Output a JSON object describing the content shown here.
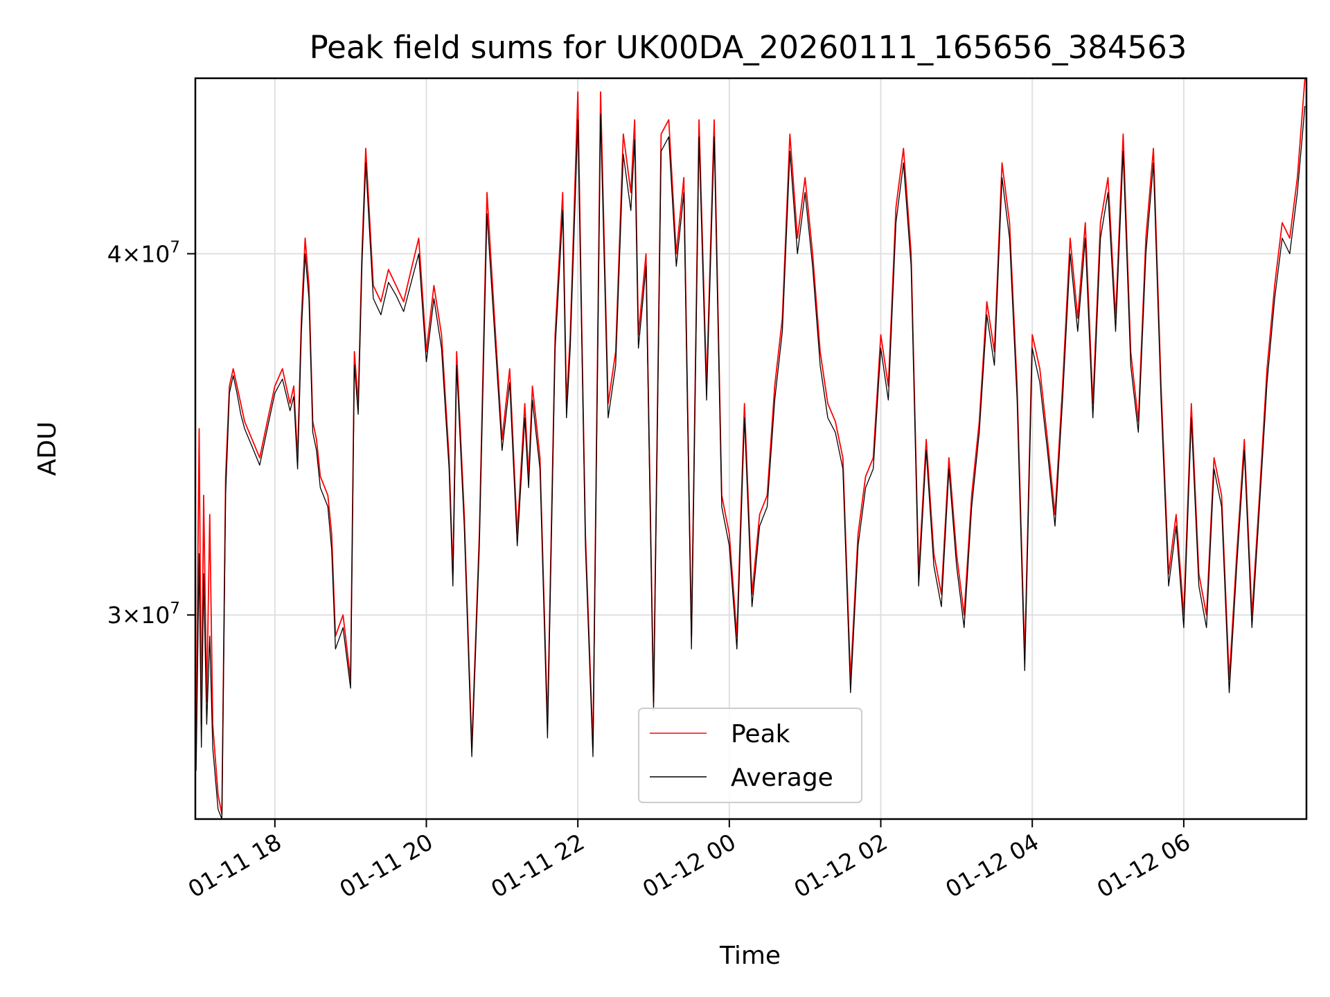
{
  "chart_data": {
    "type": "line",
    "title": "Peak field sums for UK00DA_20260111_165656_384563",
    "xlabel": "Time",
    "ylabel": "ADU",
    "yscale": "log",
    "xlim_hours": [
      16.95,
      31.62
    ],
    "ylim": [
      25500000,
      46000000
    ],
    "x_ticks": [
      {
        "hours": 18,
        "label": "01-11 18"
      },
      {
        "hours": 20,
        "label": "01-11 20"
      },
      {
        "hours": 22,
        "label": "01-11 22"
      },
      {
        "hours": 24,
        "label": "01-12 00"
      },
      {
        "hours": 26,
        "label": "01-12 02"
      },
      {
        "hours": 28,
        "label": "01-12 04"
      },
      {
        "hours": 30,
        "label": "01-12 06"
      }
    ],
    "y_ticks": [
      {
        "value": 30000000,
        "mantissa": "3",
        "exponent": "7"
      },
      {
        "value": 40000000,
        "mantissa": "4",
        "exponent": "7"
      }
    ],
    "grid": true,
    "legend_position": "lower-center",
    "series": [
      {
        "name": "Peak",
        "color": "#ff0000",
        "hours": [
          16.96,
          17.0,
          17.03,
          17.06,
          17.1,
          17.14,
          17.18,
          17.25,
          17.3,
          17.35,
          17.4,
          17.45,
          17.5,
          17.55,
          17.6,
          17.7,
          17.8,
          17.9,
          18.0,
          18.1,
          18.2,
          18.25,
          18.3,
          18.35,
          18.4,
          18.45,
          18.5,
          18.55,
          18.6,
          18.7,
          18.75,
          18.8,
          18.9,
          19.0,
          19.05,
          19.1,
          19.15,
          19.2,
          19.3,
          19.4,
          19.5,
          19.6,
          19.7,
          19.8,
          19.9,
          20.0,
          20.1,
          20.2,
          20.3,
          20.35,
          20.4,
          20.5,
          20.6,
          20.7,
          20.8,
          20.9,
          21.0,
          21.1,
          21.2,
          21.3,
          21.35,
          21.4,
          21.5,
          21.6,
          21.7,
          21.8,
          21.85,
          21.9,
          22.0,
          22.05,
          22.1,
          22.2,
          22.3,
          22.4,
          22.5,
          22.6,
          22.7,
          22.75,
          22.8,
          22.9,
          23.0,
          23.1,
          23.2,
          23.3,
          23.4,
          23.5,
          23.6,
          23.7,
          23.8,
          23.9,
          24.0,
          24.1,
          24.2,
          24.3,
          24.4,
          24.5,
          24.6,
          24.7,
          24.8,
          24.9,
          25.0,
          25.1,
          25.2,
          25.3,
          25.4,
          25.5,
          25.6,
          25.7,
          25.8,
          25.9,
          26.0,
          26.1,
          26.2,
          26.3,
          26.4,
          26.5,
          26.6,
          26.7,
          26.8,
          26.9,
          27.0,
          27.1,
          27.2,
          27.3,
          27.4,
          27.5,
          27.6,
          27.7,
          27.8,
          27.9,
          28.0,
          28.1,
          28.2,
          28.3,
          28.4,
          28.5,
          28.6,
          28.7,
          28.8,
          28.9,
          29.0,
          29.1,
          29.2,
          29.3,
          29.4,
          29.5,
          29.6,
          29.7,
          29.8,
          29.9,
          30.0,
          30.1,
          30.2,
          30.3,
          30.4,
          30.5,
          30.6,
          30.7,
          30.8,
          30.9,
          31.0,
          31.1,
          31.2,
          31.3,
          31.4,
          31.5,
          31.6
        ],
        "values": [
          27000000,
          34800000,
          27500000,
          33000000,
          28000000,
          32500000,
          27500000,
          26000000,
          25600000,
          33500000,
          36000000,
          36500000,
          36000000,
          35500000,
          35000000,
          34500000,
          34000000,
          35000000,
          36000000,
          36500000,
          35500000,
          36000000,
          34000000,
          38000000,
          40500000,
          39000000,
          35000000,
          34500000,
          33500000,
          33000000,
          32000000,
          29500000,
          30000000,
          28500000,
          37000000,
          35500000,
          40000000,
          43500000,
          39000000,
          38500000,
          39500000,
          39000000,
          38500000,
          39500000,
          40500000,
          37000000,
          39000000,
          37500000,
          34000000,
          31000000,
          37000000,
          32500000,
          27000000,
          32000000,
          42000000,
          38000000,
          34500000,
          36500000,
          32000000,
          35500000,
          33500000,
          36000000,
          34000000,
          27500000,
          37500000,
          42000000,
          35500000,
          37500000,
          45500000,
          38000000,
          32000000,
          27000000,
          45500000,
          35500000,
          37000000,
          44000000,
          42000000,
          44500000,
          37500000,
          40000000,
          28000000,
          44000000,
          44500000,
          40000000,
          42500000,
          29500000,
          44500000,
          36000000,
          44500000,
          33000000,
          32000000,
          29500000,
          35500000,
          30500000,
          32500000,
          33000000,
          36000000,
          38000000,
          44000000,
          40500000,
          42500000,
          40000000,
          37000000,
          35500000,
          35000000,
          34000000,
          28500000,
          32000000,
          33500000,
          34000000,
          37500000,
          36000000,
          41500000,
          43500000,
          40000000,
          31000000,
          34500000,
          31500000,
          30500000,
          34000000,
          31500000,
          30000000,
          33000000,
          35000000,
          38500000,
          37000000,
          43000000,
          41000000,
          36000000,
          29000000,
          37500000,
          36500000,
          34500000,
          32500000,
          36000000,
          40500000,
          38000000,
          41000000,
          35500000,
          41000000,
          42500000,
          38000000,
          44000000,
          37000000,
          35000000,
          40500000,
          43500000,
          36000000,
          31000000,
          32500000,
          30000000,
          35500000,
          31000000,
          30000000,
          34000000,
          33000000,
          28500000,
          31500000,
          34500000,
          30000000,
          33000000,
          36500000,
          39000000,
          41000000,
          40500000,
          42500000,
          46000000
        ]
      },
      {
        "name": "Average",
        "color": "#000000",
        "hours": [
          16.96,
          17.0,
          17.03,
          17.06,
          17.1,
          17.14,
          17.18,
          17.25,
          17.3,
          17.35,
          17.4,
          17.45,
          17.5,
          17.55,
          17.6,
          17.7,
          17.8,
          17.9,
          18.0,
          18.1,
          18.2,
          18.25,
          18.3,
          18.35,
          18.4,
          18.45,
          18.5,
          18.55,
          18.6,
          18.7,
          18.75,
          18.8,
          18.9,
          19.0,
          19.05,
          19.1,
          19.15,
          19.2,
          19.3,
          19.4,
          19.5,
          19.6,
          19.7,
          19.8,
          19.9,
          20.0,
          20.1,
          20.2,
          20.3,
          20.35,
          20.4,
          20.5,
          20.6,
          20.7,
          20.8,
          20.9,
          21.0,
          21.1,
          21.2,
          21.3,
          21.35,
          21.4,
          21.5,
          21.6,
          21.7,
          21.8,
          21.85,
          21.9,
          22.0,
          22.05,
          22.1,
          22.2,
          22.3,
          22.4,
          22.5,
          22.6,
          22.7,
          22.75,
          22.8,
          22.9,
          23.0,
          23.1,
          23.2,
          23.3,
          23.4,
          23.5,
          23.6,
          23.7,
          23.8,
          23.9,
          24.0,
          24.1,
          24.2,
          24.3,
          24.4,
          24.5,
          24.6,
          24.7,
          24.8,
          24.9,
          25.0,
          25.1,
          25.2,
          25.3,
          25.4,
          25.5,
          25.6,
          25.7,
          25.8,
          25.9,
          26.0,
          26.1,
          26.2,
          26.3,
          26.4,
          26.5,
          26.6,
          26.7,
          26.8,
          26.9,
          27.0,
          27.1,
          27.2,
          27.3,
          27.4,
          27.5,
          27.6,
          27.7,
          27.8,
          27.9,
          28.0,
          28.1,
          28.2,
          28.3,
          28.4,
          28.5,
          28.6,
          28.7,
          28.8,
          28.9,
          29.0,
          29.1,
          29.2,
          29.3,
          29.4,
          29.5,
          29.6,
          29.7,
          29.8,
          29.9,
          30.0,
          30.1,
          30.2,
          30.3,
          30.4,
          30.5,
          30.6,
          30.7,
          30.8,
          30.9,
          31.0,
          31.1,
          31.2,
          31.3,
          31.4,
          31.5,
          31.6
        ],
        "values": [
          26500000,
          31500000,
          27000000,
          31000000,
          27500000,
          29500000,
          27000000,
          25700000,
          25500000,
          33000000,
          35800000,
          36300000,
          35800000,
          35200000,
          34800000,
          34300000,
          33800000,
          34800000,
          35800000,
          36200000,
          35300000,
          35700000,
          33700000,
          37600000,
          40000000,
          38600000,
          34700000,
          34200000,
          33200000,
          32700000,
          31600000,
          29200000,
          29700000,
          28300000,
          36600000,
          35200000,
          39600000,
          43000000,
          38600000,
          38100000,
          39100000,
          38700000,
          38200000,
          39100000,
          40000000,
          36700000,
          38600000,
          37100000,
          33700000,
          30700000,
          36600000,
          32200000,
          26800000,
          31700000,
          41300000,
          37600000,
          34200000,
          36100000,
          31700000,
          35100000,
          33200000,
          35600000,
          33700000,
          27200000,
          37100000,
          41400000,
          35100000,
          37100000,
          44500000,
          37600000,
          31700000,
          26800000,
          44700000,
          35100000,
          36600000,
          43300000,
          41400000,
          43800000,
          37100000,
          39600000,
          27800000,
          43400000,
          43900000,
          39600000,
          42000000,
          29200000,
          43900000,
          35600000,
          43900000,
          32700000,
          31700000,
          29200000,
          35100000,
          30200000,
          32200000,
          32700000,
          35600000,
          37600000,
          43400000,
          40000000,
          42000000,
          39600000,
          36600000,
          35100000,
          34700000,
          33700000,
          28200000,
          31700000,
          33200000,
          33700000,
          37100000,
          35600000,
          41000000,
          43000000,
          39600000,
          30700000,
          34200000,
          31200000,
          30200000,
          33700000,
          31200000,
          29700000,
          32700000,
          34700000,
          38100000,
          36600000,
          42500000,
          40500000,
          35600000,
          28700000,
          37100000,
          36100000,
          34200000,
          32200000,
          35600000,
          40000000,
          37600000,
          40500000,
          35100000,
          40500000,
          42000000,
          37600000,
          43400000,
          36600000,
          34700000,
          40000000,
          43000000,
          35600000,
          30700000,
          32200000,
          29700000,
          35100000,
          30700000,
          29700000,
          33700000,
          32700000,
          28200000,
          31200000,
          34200000,
          29700000,
          32700000,
          36100000,
          38600000,
          40500000,
          40000000,
          42000000,
          45000000
        ]
      }
    ]
  }
}
